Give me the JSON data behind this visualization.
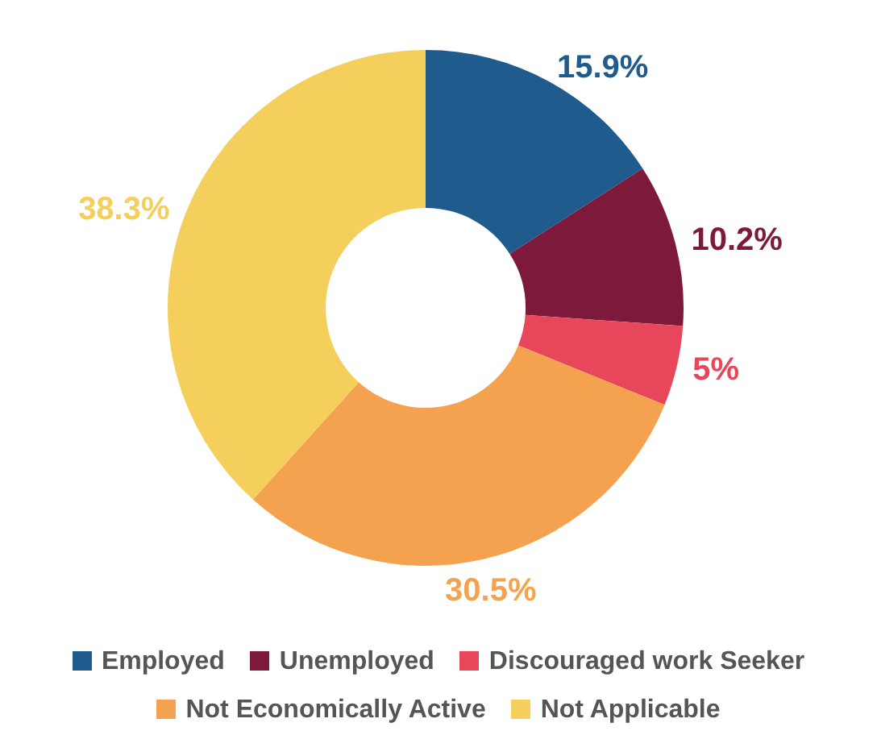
{
  "chart_data": {
    "type": "donut",
    "categories": [
      "Employed",
      "Unemployed",
      "Discouraged work Seeker",
      "Not Economically Active",
      "Not Applicable"
    ],
    "values": [
      15.9,
      10.2,
      5,
      30.5,
      38.3
    ],
    "value_labels": [
      "15.9%",
      "10.2%",
      "5%",
      "30.5%",
      "38.3%"
    ],
    "colors": [
      "#1f5b8c",
      "#7d1a3c",
      "#e8475b",
      "#f4a24f",
      "#f5cf5c"
    ],
    "legend": "bottom"
  }
}
